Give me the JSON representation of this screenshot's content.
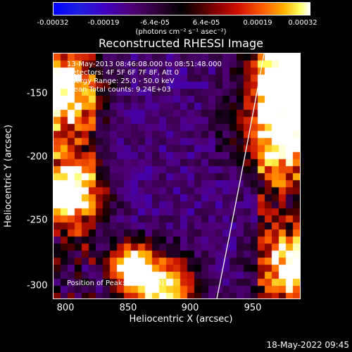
{
  "colorbar": {
    "ticks": [
      "-0.00032",
      "-0.00019",
      "-6.4e-05",
      "6.4e-05",
      "0.00019",
      "0.00032"
    ],
    "units": "(photons cm⁻² s⁻¹ asec⁻²)"
  },
  "title": "Reconstructed RHESSI Image",
  "info": {
    "line1": "13-May-2013 08:46:08.000 to 08:51:48.000",
    "line2": "Detectors: 4F 5F 6F 7F 8F, Att 0",
    "line3": "Energy Range: 25.0 - 50.0 keV",
    "line4": "Clean   Total counts: 9.24E+03",
    "peak": "Position of Peak: [904,-168]"
  },
  "x_axis": {
    "label": "Heliocentric X (arcsec)",
    "ticks": [
      "800",
      "850",
      "900",
      "950"
    ]
  },
  "y_axis": {
    "label": "Heliocentric Y (arcsec)",
    "ticks": [
      "-150",
      "-200",
      "-250",
      "-300"
    ]
  },
  "timestamp": "18-May-2022 09:45",
  "colors": {
    "background": "#000000",
    "text": "#ffffff"
  }
}
